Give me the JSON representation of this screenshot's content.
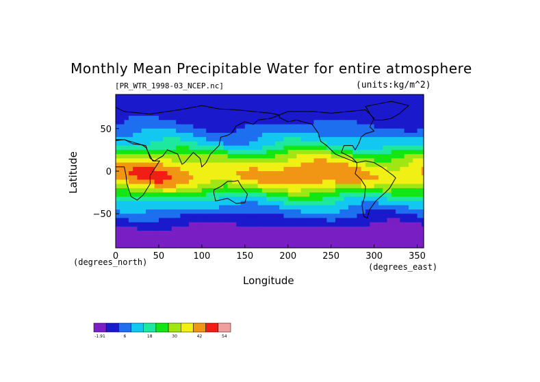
{
  "chart_data": {
    "type": "heatmap",
    "title": "Monthly Mean Precipitable Water for entire atmosphere",
    "subtitle_left": "[PR_WTR_1998-03_NCEP.nc]",
    "subtitle_right": "(units:kg/m^2)",
    "xlabel": "Longitude",
    "ylabel": "Latitude",
    "x_unit": "(degrees_east)",
    "y_unit": "(degrees_north)",
    "xlim": [
      0,
      357.5
    ],
    "ylim": [
      -90,
      90
    ],
    "x_ticks": [
      0,
      50,
      100,
      150,
      200,
      250,
      300,
      350
    ],
    "y_ticks": [
      -50,
      0,
      50
    ],
    "colorbar": {
      "labels": [
        "-1.91",
        "6",
        "18",
        "30",
        "42",
        "54"
      ],
      "colors": [
        "#7a1fc4",
        "#1a1acc",
        "#1e6ef0",
        "#12c8f0",
        "#1ee8a0",
        "#14e614",
        "#a0e614",
        "#f0f014",
        "#f09614",
        "#f01e14",
        "#f0a0a0"
      ]
    },
    "zonal_profile": [
      {
        "lat": 90,
        "value": 10
      },
      {
        "lat": 75,
        "value": 8
      },
      {
        "lat": 60,
        "value": 10
      },
      {
        "lat": 45,
        "value": 16
      },
      {
        "lat": 30,
        "value": 24
      },
      {
        "lat": 20,
        "value": 36
      },
      {
        "lat": 10,
        "value": 44
      },
      {
        "lat": 0,
        "value": 50
      },
      {
        "lat": -10,
        "value": 50
      },
      {
        "lat": -20,
        "value": 40
      },
      {
        "lat": -30,
        "value": 28
      },
      {
        "lat": -40,
        "value": 20
      },
      {
        "lat": -50,
        "value": 14
      },
      {
        "lat": -60,
        "value": 8
      },
      {
        "lat": -70,
        "value": 3
      },
      {
        "lat": -90,
        "value": 1
      }
    ]
  }
}
